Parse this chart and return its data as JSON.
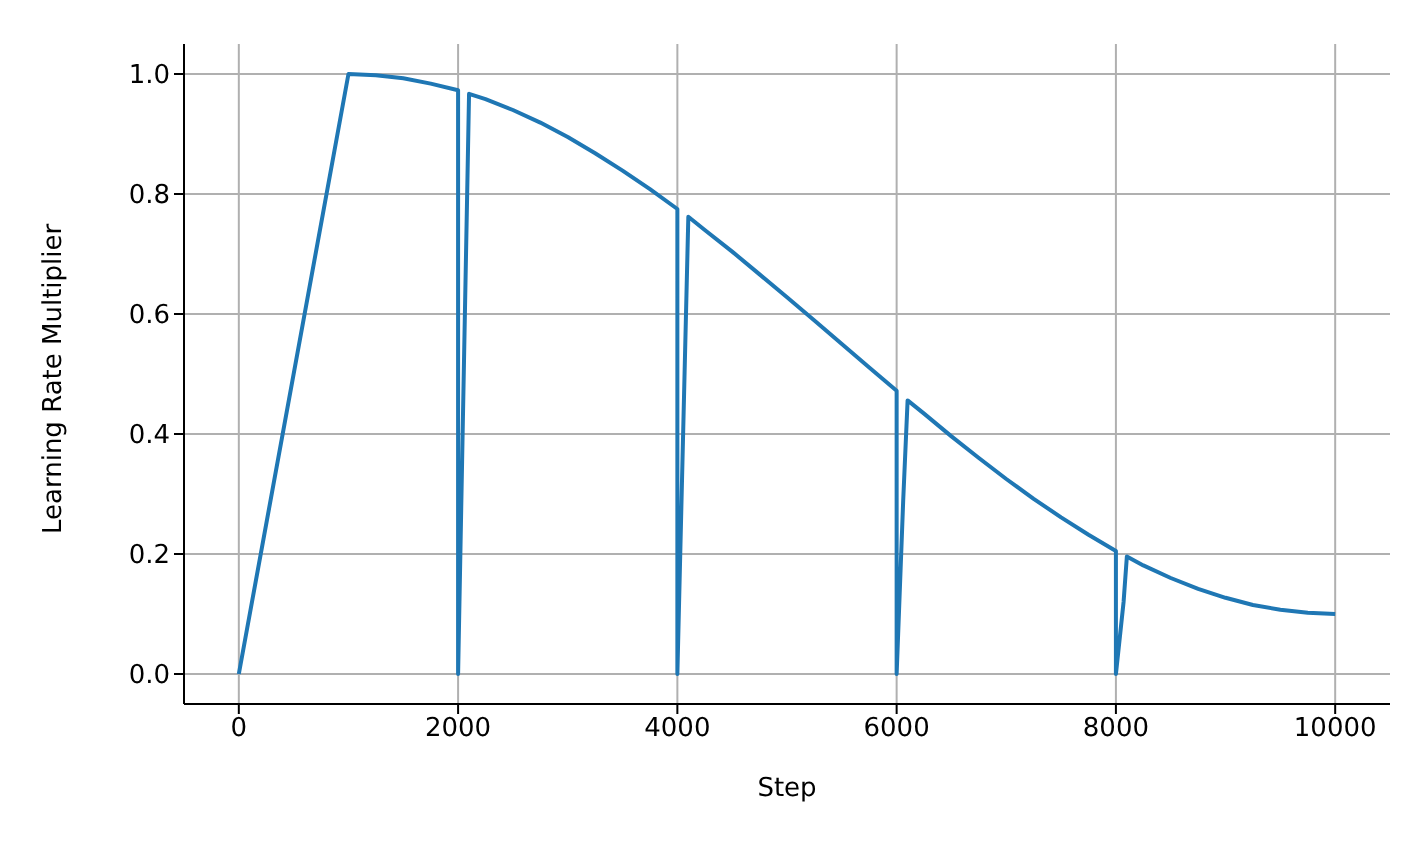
{
  "chart_data": {
    "type": "line",
    "xlabel": "Step",
    "ylabel": "Learning Rate Multiplier",
    "x": [
      0,
      1000,
      1250,
      1500,
      1750,
      2000,
      2000,
      2100,
      2250,
      2500,
      2750,
      3000,
      3250,
      3500,
      3750,
      4000,
      4000,
      4100,
      4250,
      4500,
      4750,
      5000,
      5250,
      5500,
      5750,
      6000,
      6000,
      6060,
      6100,
      6250,
      6500,
      6750,
      7000,
      7250,
      7500,
      7750,
      8000,
      8000,
      8070,
      8100,
      8250,
      8500,
      8750,
      9000,
      9250,
      9500,
      9750,
      10000
    ],
    "series": [
      {
        "color": "#1f77b4",
        "values": [
          0,
          1.0,
          0.998,
          0.993,
          0.984,
          0.973,
          0,
          0.967,
          0.958,
          0.94,
          0.919,
          0.895,
          0.868,
          0.839,
          0.808,
          0.775,
          0,
          0.762,
          0.74,
          0.704,
          0.666,
          0.628,
          0.589,
          0.55,
          0.511,
          0.472,
          0,
          0.29,
          0.456,
          0.434,
          0.396,
          0.36,
          0.325,
          0.292,
          0.261,
          0.232,
          0.205,
          0,
          0.12,
          0.196,
          0.181,
          0.16,
          0.142,
          0.127,
          0.115,
          0.107,
          0.102,
          0.1
        ]
      }
    ],
    "xlim": [
      -500,
      10500
    ],
    "xticks": [
      0,
      2000,
      4000,
      6000,
      8000,
      10000
    ],
    "ylim": [
      -0.05,
      1.05
    ],
    "yticks": [
      {
        "value": 0,
        "label": "0.0"
      },
      0.2,
      0.4,
      0.6,
      0.8,
      {
        "value": 1,
        "label": "1.0"
      }
    ],
    "grid": true,
    "legend": false,
    "marker": "none",
    "line_style": "solid"
  }
}
